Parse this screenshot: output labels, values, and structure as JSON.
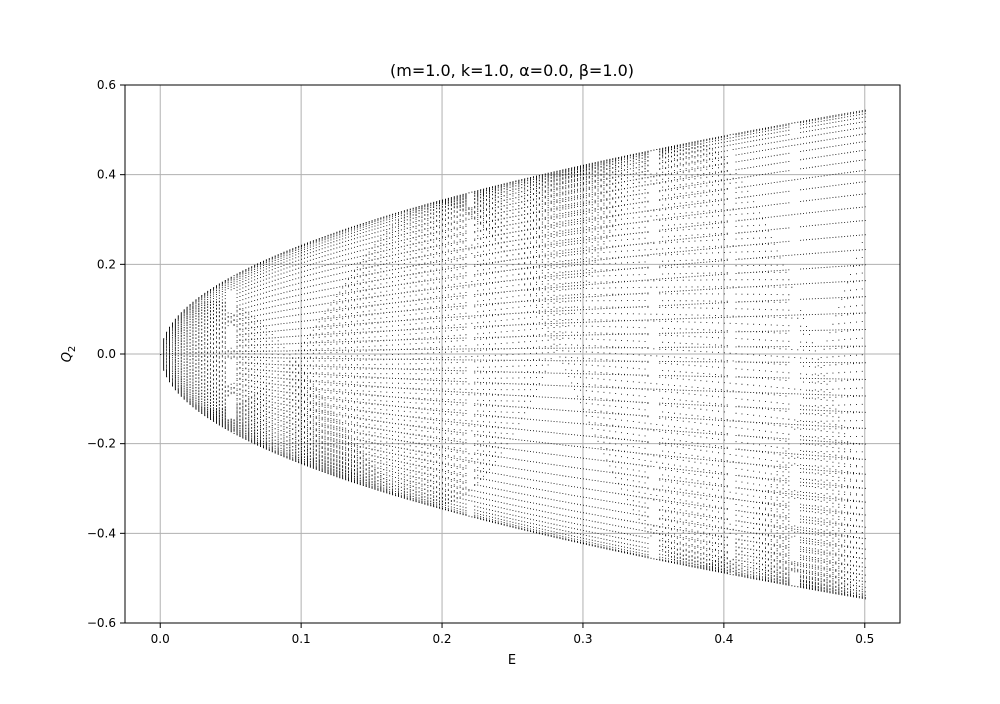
{
  "chart_data": {
    "type": "scatter",
    "title": "(m=1.0, k=1.0, α=0.0, β=1.0)",
    "xlabel": "E",
    "ylabel": "Q",
    "ylabel_sub": "2",
    "xlim": [
      -0.025,
      0.525
    ],
    "ylim": [
      -0.6,
      0.6
    ],
    "xticks": [
      0.0,
      0.1,
      0.2,
      0.3,
      0.4,
      0.5
    ],
    "xtick_labels": [
      "0.0",
      "0.1",
      "0.2",
      "0.3",
      "0.4",
      "0.5"
    ],
    "yticks": [
      -0.6,
      -0.4,
      -0.2,
      0.0,
      0.2,
      0.4,
      0.6
    ],
    "ytick_labels": [
      "−0.6",
      "−0.4",
      "−0.2",
      "0.0",
      "0.2",
      "0.4",
      "0.6"
    ],
    "grid": true,
    "marker_color": "#000000",
    "envelope": {
      "description": "points fill region |Q2| <= sqrt(E) - approx, up to E = 0.5",
      "e_max": 0.5,
      "q_max_at_e_max": 0.545,
      "q_at_e_0_1": 0.26,
      "q_at_e_0_2": 0.36,
      "q_at_e_0_4": 0.49
    },
    "resonance_gaps_E": [
      0.05,
      0.22,
      0.35,
      0.405,
      0.45
    ]
  }
}
